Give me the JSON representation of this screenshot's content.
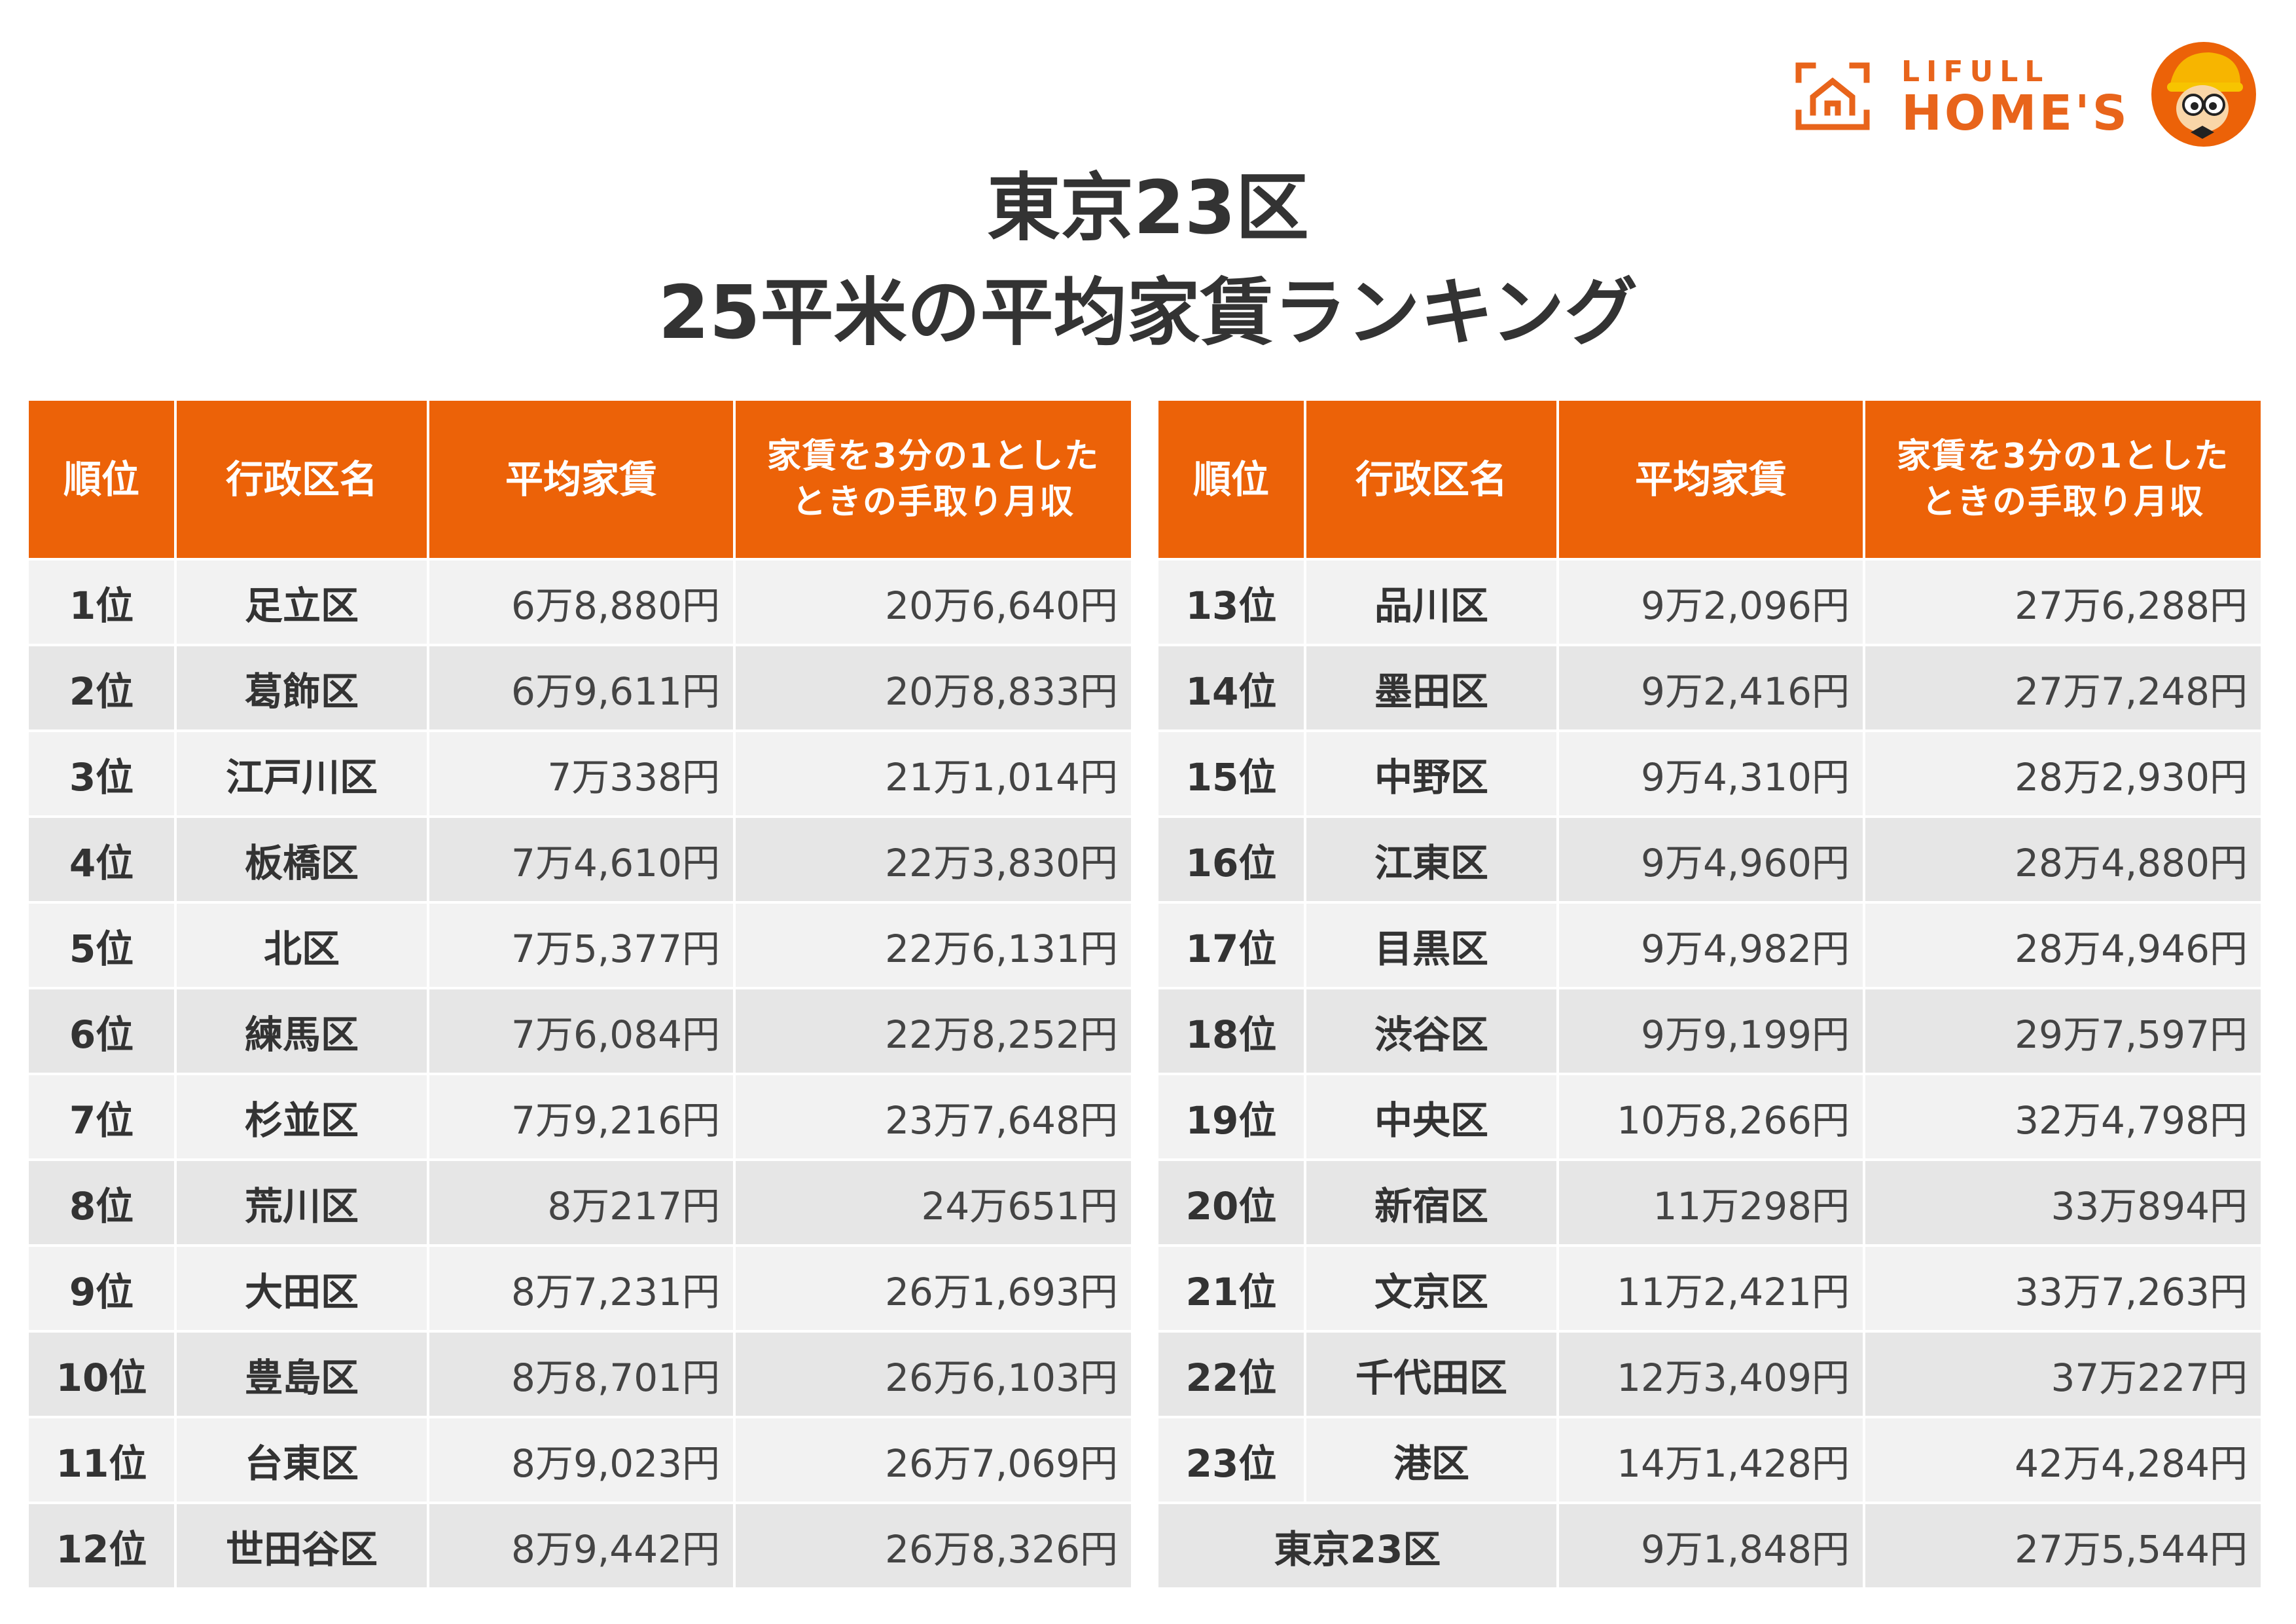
{
  "brand": {
    "name_top": "LIFULL",
    "name_bottom": "HOME'S",
    "color": "#e8641b"
  },
  "title": {
    "line1": "東京23区",
    "line2": "25平米の平均家賃ランキング"
  },
  "colors": {
    "header_bg": "#ec6208",
    "row_light": "#f2f2f2",
    "row_dark": "#e6e6e6"
  },
  "headers": {
    "rank": "順位",
    "ward": "行政区名",
    "avg_rent": "平均家賃",
    "income_line1": "家賃を3分の1とした",
    "income_line2": "ときの手取り月収"
  },
  "rows": [
    {
      "rank": "1位",
      "ward": "足立区",
      "rent": "6万8,880円",
      "income": "20万6,640円"
    },
    {
      "rank": "2位",
      "ward": "葛飾区",
      "rent": "6万9,611円",
      "income": "20万8,833円"
    },
    {
      "rank": "3位",
      "ward": "江戸川区",
      "rent": "7万338円",
      "income": "21万1,014円"
    },
    {
      "rank": "4位",
      "ward": "板橋区",
      "rent": "7万4,610円",
      "income": "22万3,830円"
    },
    {
      "rank": "5位",
      "ward": "北区",
      "rent": "7万5,377円",
      "income": "22万6,131円"
    },
    {
      "rank": "6位",
      "ward": "練馬区",
      "rent": "7万6,084円",
      "income": "22万8,252円"
    },
    {
      "rank": "7位",
      "ward": "杉並区",
      "rent": "7万9,216円",
      "income": "23万7,648円"
    },
    {
      "rank": "8位",
      "ward": "荒川区",
      "rent": "8万217円",
      "income": "24万651円"
    },
    {
      "rank": "9位",
      "ward": "大田区",
      "rent": "8万7,231円",
      "income": "26万1,693円"
    },
    {
      "rank": "10位",
      "ward": "豊島区",
      "rent": "8万8,701円",
      "income": "26万6,103円"
    },
    {
      "rank": "11位",
      "ward": "台東区",
      "rent": "8万9,023円",
      "income": "26万7,069円"
    },
    {
      "rank": "12位",
      "ward": "世田谷区",
      "rent": "8万9,442円",
      "income": "26万8,326円"
    },
    {
      "rank": "13位",
      "ward": "品川区",
      "rent": "9万2,096円",
      "income": "27万6,288円"
    },
    {
      "rank": "14位",
      "ward": "墨田区",
      "rent": "9万2,416円",
      "income": "27万7,248円"
    },
    {
      "rank": "15位",
      "ward": "中野区",
      "rent": "9万4,310円",
      "income": "28万2,930円"
    },
    {
      "rank": "16位",
      "ward": "江東区",
      "rent": "9万4,960円",
      "income": "28万4,880円"
    },
    {
      "rank": "17位",
      "ward": "目黒区",
      "rent": "9万4,982円",
      "income": "28万4,946円"
    },
    {
      "rank": "18位",
      "ward": "渋谷区",
      "rent": "9万9,199円",
      "income": "29万7,597円"
    },
    {
      "rank": "19位",
      "ward": "中央区",
      "rent": "10万8,266円",
      "income": "32万4,798円"
    },
    {
      "rank": "20位",
      "ward": "新宿区",
      "rent": "11万298円",
      "income": "33万894円"
    },
    {
      "rank": "21位",
      "ward": "文京区",
      "rent": "11万2,421円",
      "income": "33万7,263円"
    },
    {
      "rank": "22位",
      "ward": "千代田区",
      "rent": "12万3,409円",
      "income": "37万227円"
    },
    {
      "rank": "23位",
      "ward": "港区",
      "rent": "14万1,428円",
      "income": "42万4,284円"
    }
  ],
  "total": {
    "label": "東京23区",
    "rent": "9万1,848円",
    "income": "27万5,544円"
  }
}
